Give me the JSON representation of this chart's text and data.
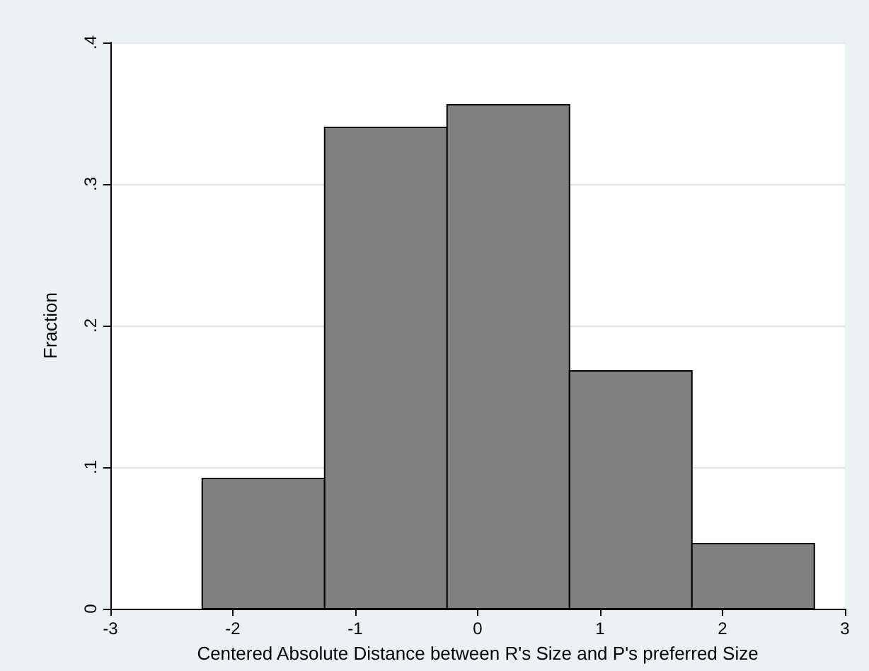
{
  "chart_data": {
    "type": "histogram",
    "xlabel": "Centered Absolute Distance between R's Size and P's preferred Size",
    "ylabel": "Fraction",
    "bins": [
      -2.25,
      -1.25,
      -0.25,
      0.75,
      1.75,
      2.75
    ],
    "values": [
      0.092,
      0.34,
      0.356,
      0.168,
      0.046
    ],
    "color": "#808080",
    "xlim": [
      -3,
      3
    ],
    "xticks": [
      -3,
      -2,
      -1,
      0,
      1,
      2,
      3
    ],
    "ylim": [
      0,
      0.4
    ],
    "yticks": [
      0,
      {
        "value": 0.1,
        "label": ".1"
      },
      {
        "value": 0.2,
        "label": ".2"
      },
      {
        "value": 0.3,
        "label": ".3"
      },
      {
        "value": 0.4,
        "label": ".4"
      }
    ],
    "grid": "y"
  }
}
